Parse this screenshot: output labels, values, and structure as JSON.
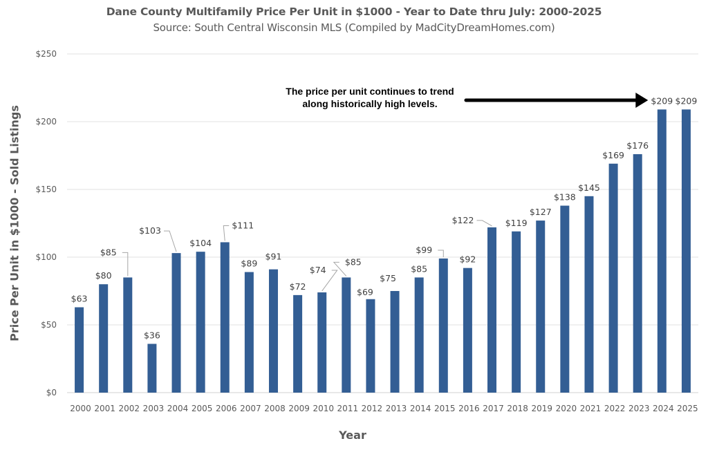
{
  "chart_data": {
    "type": "bar",
    "title": "Dane County Multifamily Price Per Unit in $1000 - Year to Date thru July: 2000-2025",
    "subtitle": "Source: South Central Wisconsin MLS (Compiled by MadCityDreamHomes.com)",
    "xlabel": "Year",
    "ylabel": "Price Per Unit in $1000 - Sold Listings",
    "ylim": [
      0,
      250
    ],
    "yticks": [
      0,
      50,
      100,
      150,
      200,
      250
    ],
    "ytick_labels": [
      "$0",
      "$50",
      "$100",
      "$150",
      "$200",
      "$250"
    ],
    "grid": true,
    "legend": "none",
    "bar_color": "#335e94",
    "categories": [
      "2000",
      "2001",
      "2002",
      "2003",
      "2004",
      "2005",
      "2006",
      "2007",
      "2008",
      "2009",
      "2010",
      "2011",
      "2012",
      "2013",
      "2014",
      "2015",
      "2016",
      "2017",
      "2018",
      "2019",
      "2020",
      "2021",
      "2022",
      "2023",
      "2024",
      "2025"
    ],
    "values": [
      63,
      80,
      85,
      36,
      103,
      104,
      111,
      89,
      91,
      72,
      74,
      85,
      69,
      75,
      85,
      99,
      92,
      122,
      119,
      127,
      138,
      145,
      169,
      176,
      209,
      209
    ],
    "data_labels": [
      "$63",
      "$80",
      "$85",
      "$36",
      "$103",
      "$104",
      "$111",
      "$89",
      "$91",
      "$72",
      "$74",
      "$85",
      "$69",
      "$75",
      "$85",
      "$99",
      "$92",
      "$122",
      "$119",
      "$127",
      "$138",
      "$145",
      "$169",
      "$176",
      "$209",
      "$209"
    ],
    "annotation": {
      "text_line1": "The price per unit continues to trend",
      "text_line2": "along historically high levels.",
      "arrow_points_to": "2024"
    }
  }
}
